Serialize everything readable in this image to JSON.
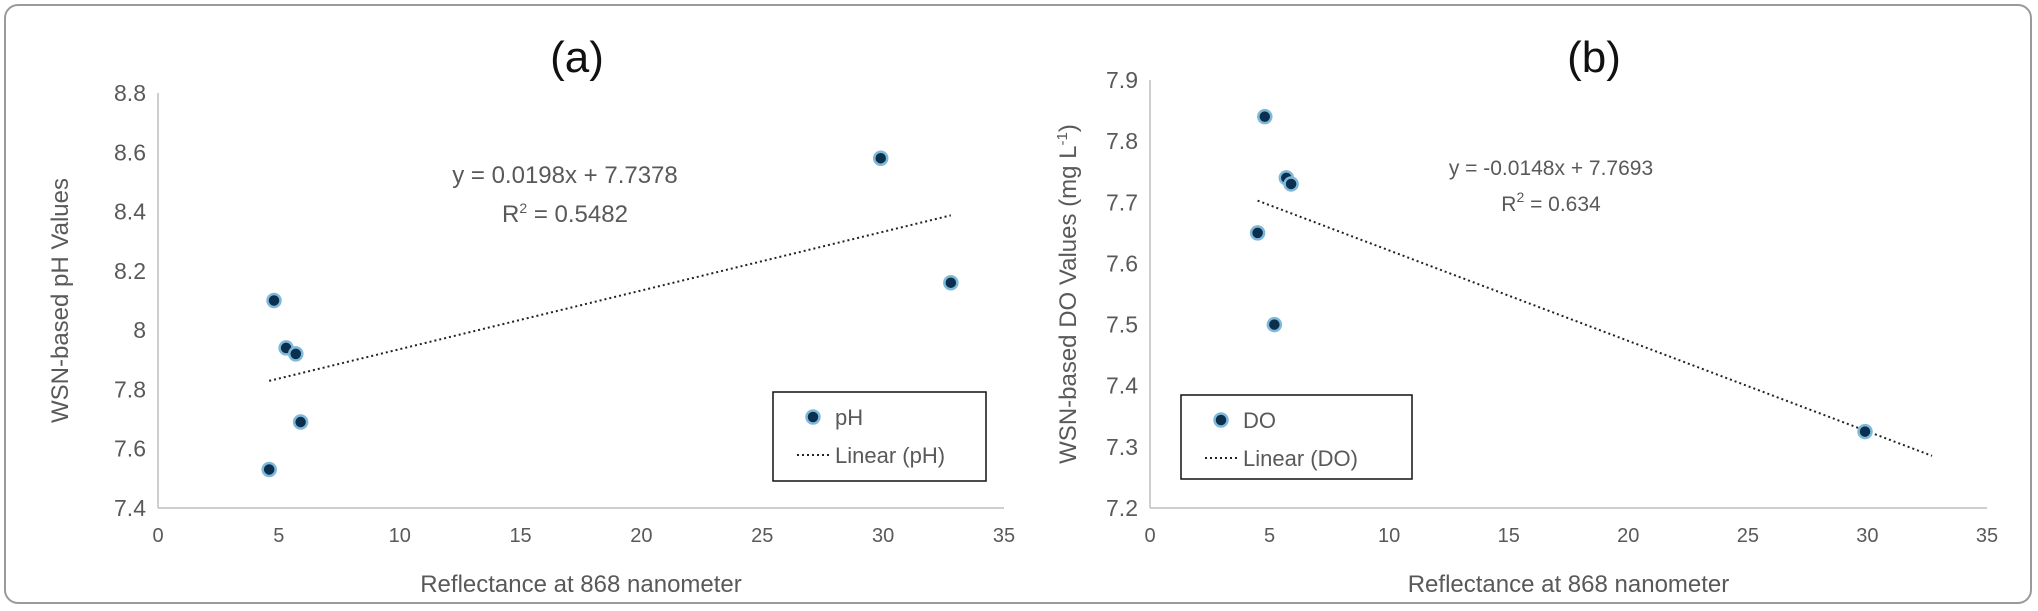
{
  "chart_data": [
    {
      "type": "scatter",
      "panel_label": "(a)",
      "xlabel": "Reflectance at 868 nanometer",
      "ylabel": "WSN-based pH Values",
      "xlim": [
        0,
        35
      ],
      "ylim": [
        7.4,
        8.8
      ],
      "x_ticks": [
        "0",
        "5",
        "10",
        "15",
        "20",
        "25",
        "30",
        "35"
      ],
      "y_ticks": [
        "7.4",
        "7.6",
        "7.8",
        "8",
        "8.2",
        "8.4",
        "8.6",
        "8.8"
      ],
      "grid": false,
      "series": [
        {
          "name": "pH",
          "points": [
            {
              "x": 4.6,
              "y": 7.53
            },
            {
              "x": 4.8,
              "y": 8.1
            },
            {
              "x": 5.3,
              "y": 7.94
            },
            {
              "x": 5.7,
              "y": 7.92
            },
            {
              "x": 5.9,
              "y": 7.69
            },
            {
              "x": 29.9,
              "y": 8.58
            },
            {
              "x": 32.8,
              "y": 8.16
            }
          ]
        }
      ],
      "trendline": {
        "name": "Linear (pH)",
        "slope": 0.0198,
        "intercept": 7.7378,
        "x_range": [
          4.6,
          32.8
        ]
      },
      "equation_text": "y = 0.0198x + 7.7378",
      "r2_prefix": "R",
      "r2_value": " = 0.5482",
      "legend_position": "bottom-right",
      "marker_color": "#0b2f4f",
      "marker_edge": "#7fb8d9"
    },
    {
      "type": "scatter",
      "panel_label": "(b)",
      "xlabel": "Reflectance at 868 nanometer",
      "ylabel_text": "WSN-based DO Values (mg L",
      "ylabel_sup": "-1",
      "ylabel_end": ")",
      "xlim": [
        0,
        35
      ],
      "ylim": [
        7.2,
        7.9
      ],
      "x_ticks": [
        "0",
        "5",
        "10",
        "15",
        "20",
        "25",
        "30",
        "35"
      ],
      "y_ticks": [
        "7.2",
        "7.3",
        "7.4",
        "7.5",
        "7.6",
        "7.7",
        "7.8",
        "7.9"
      ],
      "grid": false,
      "series": [
        {
          "name": "DO",
          "points": [
            {
              "x": 4.5,
              "y": 7.65
            },
            {
              "x": 4.8,
              "y": 7.84
            },
            {
              "x": 5.2,
              "y": 7.5
            },
            {
              "x": 5.7,
              "y": 7.74
            },
            {
              "x": 5.9,
              "y": 7.73
            },
            {
              "x": 29.9,
              "y": 7.325
            }
          ]
        }
      ],
      "trendline": {
        "name": "Linear (DO)",
        "slope": -0.0148,
        "intercept": 7.7693,
        "x_range": [
          4.5,
          32.7
        ]
      },
      "equation_text": "y = -0.0148x + 7.7693",
      "r2_prefix": "R",
      "r2_value": " = 0.634",
      "legend_position": "bottom-left",
      "marker_color": "#0b2f4f",
      "marker_edge": "#7fb8d9"
    }
  ]
}
